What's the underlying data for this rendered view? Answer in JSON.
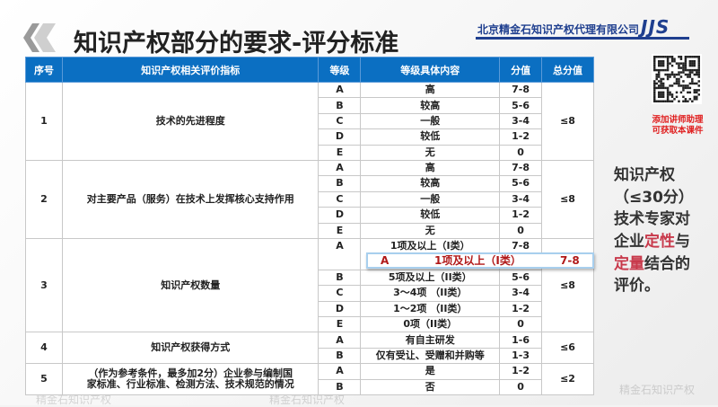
{
  "title": "知识产权部分的要求-评分标准",
  "company": "北京精金石知识产权代理有限公司",
  "brand": "JJS",
  "watermark": "精金石知识产权",
  "qr_caption": [
    "添加讲师助理",
    "可获取本课件"
  ],
  "side_note": {
    "l1": "知识产权",
    "l2": "（≤30分）",
    "l3": "技术专家对",
    "l4a": "企业",
    "l4b": "定性",
    "l4c": "与",
    "l5a": "定量",
    "l5b": "结合的",
    "l6": "评价。"
  },
  "colors": {
    "header": "#0b6fc2",
    "accent_red": "#c8394b",
    "brand": "#1f3f8f"
  },
  "headers": [
    "序号",
    "知识产权相关评价指标",
    "等级",
    "等级具体内容",
    "分值",
    "总分值"
  ],
  "rows": [
    {
      "no": "1",
      "indicator": "技术的先进程度",
      "total": "≤8",
      "grades": [
        [
          "A",
          "高",
          "7-8"
        ],
        [
          "B",
          "较高",
          "5-6"
        ],
        [
          "C",
          "一般",
          "3-4"
        ],
        [
          "D",
          "较低",
          "1-2"
        ],
        [
          "E",
          "无",
          "0"
        ]
      ]
    },
    {
      "no": "2",
      "indicator": "对主要产品（服务）在技术上发挥核心支持作用",
      "total": "≤8",
      "grades": [
        [
          "A",
          "高",
          "7-8"
        ],
        [
          "B",
          "较高",
          "5-6"
        ],
        [
          "C",
          "一般",
          "3-4"
        ],
        [
          "D",
          "较低",
          "1-2"
        ],
        [
          "E",
          "无",
          "0"
        ]
      ]
    },
    {
      "no": "3",
      "indicator": "知识产权数量",
      "total": "≤8",
      "grades": [
        [
          "A",
          "1项及以上（I类）",
          "7-8"
        ],
        [
          "B",
          "5项及以上（II类）",
          "5-6"
        ],
        [
          "C",
          "3～4项 （II类）",
          "3-4"
        ],
        [
          "D",
          "1～2项 （II类）",
          "1-2"
        ],
        [
          "E",
          "0项（II类）",
          "0"
        ]
      ]
    },
    {
      "no": "4",
      "indicator": "知识产权获得方式",
      "total": "≤6",
      "grades": [
        [
          "A",
          "有自主研发",
          "1-6"
        ],
        [
          "B",
          "仅有受让、受赠和并购等",
          "1-3"
        ]
      ]
    },
    {
      "no": "5",
      "indicator": "（作为参考条件，最多加2分）企业参与编制国家标准、行业标准、检测方法、技术规范的情况",
      "total": "≤2",
      "grades": [
        [
          "A",
          "是",
          "1-2"
        ],
        [
          "B",
          "否",
          "0"
        ]
      ]
    }
  ],
  "popup": {
    "grade": "A",
    "content": "1项及以上（I类）",
    "score": "7-8"
  }
}
